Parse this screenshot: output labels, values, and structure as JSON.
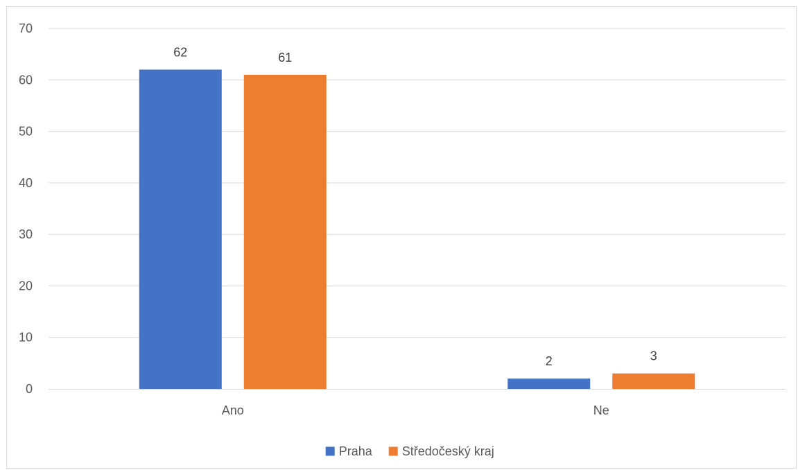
{
  "chart_data": {
    "type": "bar",
    "categories": [
      "Ano",
      "Ne"
    ],
    "series": [
      {
        "name": "Praha",
        "values": [
          62,
          2
        ],
        "color": "#4472C4"
      },
      {
        "name": "Středočeský kraj",
        "values": [
          61,
          3
        ],
        "color": "#ED7D31"
      }
    ],
    "ylim": [
      0,
      70
    ],
    "yticks": [
      0,
      10,
      20,
      30,
      40,
      50,
      60,
      70
    ],
    "grid": true,
    "data_labels": true,
    "legend_position": "bottom",
    "title": "",
    "xlabel": "",
    "ylabel": ""
  }
}
